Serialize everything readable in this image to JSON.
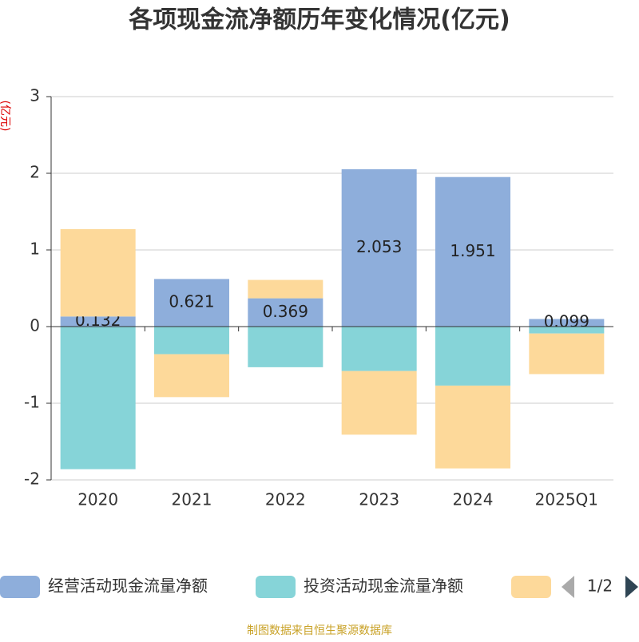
{
  "chart_data": {
    "type": "bar",
    "stacked": true,
    "title": "各项现金流净额历年变化情况(亿元)",
    "y_label": "(亿元)",
    "categories": [
      "2020",
      "2021",
      "2022",
      "2023",
      "2024",
      "2025Q1"
    ],
    "series": [
      {
        "name": "经营活动现金流量净额",
        "color": "#8eaedb",
        "values": [
          0.132,
          0.621,
          0.369,
          2.053,
          1.951,
          0.099
        ],
        "show_labels": true
      },
      {
        "name": "投资活动现金流量净额",
        "color": "#86d4d8",
        "values": [
          -1.86,
          -0.36,
          -0.53,
          -0.58,
          -0.77,
          -0.09
        ]
      },
      {
        "color": "#fdd99a",
        "values": [
          1.14,
          -0.56,
          0.24,
          -0.83,
          -1.08,
          -0.53
        ]
      }
    ],
    "ylim": [
      -2,
      3
    ],
    "yticks": [
      -2,
      -1,
      0,
      1,
      2,
      3
    ],
    "grid": true,
    "legend_page": "1/2",
    "source": "制图数据来自恒生聚源数据库"
  }
}
